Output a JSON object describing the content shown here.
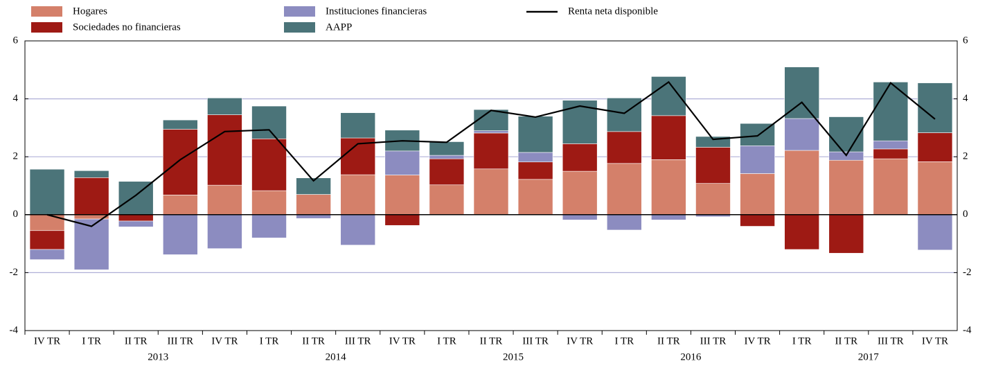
{
  "chart_data": {
    "type": "bar",
    "stacked": true,
    "categories": [
      "IV TR",
      "I TR",
      "II TR",
      "III TR",
      "IV TR",
      "I TR",
      "II TR",
      "III TR",
      "IV TR",
      "I TR",
      "II TR",
      "III TR",
      "IV TR",
      "I TR",
      "II TR",
      "III TR",
      "IV TR",
      "I TR",
      "II TR",
      "III TR",
      "IV TR"
    ],
    "years": [
      null,
      "2013",
      "2013",
      "2013",
      "2013",
      "2014",
      "2014",
      "2014",
      "2014",
      "2015",
      "2015",
      "2015",
      "2015",
      "2016",
      "2016",
      "2016",
      "2016",
      "2017",
      "2017",
      "2017",
      "2017"
    ],
    "series": [
      {
        "name": "Hogares",
        "color": "#d4806a",
        "values": [
          -0.55,
          -0.15,
          0,
          0.68,
          1.02,
          0.83,
          0.7,
          1.38,
          1.37,
          1.03,
          1.58,
          1.22,
          1.5,
          1.77,
          1.9,
          1.08,
          1.42,
          2.22,
          1.88,
          1.93,
          1.83
        ]
      },
      {
        "name": "Sociedades no financieras",
        "color": "#9e1a14",
        "values": [
          -0.65,
          1.28,
          -0.22,
          2.27,
          2.43,
          1.79,
          0,
          1.27,
          -0.37,
          0.9,
          1.24,
          0.6,
          0.95,
          1.1,
          1.52,
          1.25,
          -0.4,
          -1.2,
          -1.33,
          0.34,
          1.0
        ]
      },
      {
        "name": "Instituciones financieras",
        "color": "#8c8cc0",
        "values": [
          -0.35,
          -1.75,
          -0.2,
          -1.38,
          -1.17,
          -0.8,
          -0.13,
          -1.05,
          0.83,
          0.12,
          0.08,
          0.33,
          -0.18,
          -0.53,
          -0.18,
          -0.07,
          0.96,
          1.1,
          0.29,
          0.28,
          -1.22
        ]
      },
      {
        "name": "AAPP",
        "color": "#4b7479",
        "values": [
          1.57,
          0.24,
          1.15,
          0.32,
          0.58,
          1.13,
          0.57,
          0.87,
          0.72,
          0.47,
          0.73,
          1.25,
          1.5,
          1.16,
          1.35,
          0.37,
          0.77,
          1.78,
          1.21,
          2.03,
          1.72
        ]
      },
      {
        "name": "Renta neta disponible",
        "color": "#000000",
        "type": "line",
        "values": [
          0,
          -0.4,
          0.67,
          1.9,
          2.87,
          2.93,
          1.17,
          2.45,
          2.55,
          2.5,
          3.6,
          3.37,
          3.75,
          3.5,
          4.58,
          2.6,
          2.72,
          3.88,
          2.05,
          4.55,
          3.3
        ]
      }
    ],
    "ylim": [
      -4,
      6
    ],
    "yticks": [
      -4,
      -2,
      0,
      2,
      4,
      6
    ],
    "grid": true,
    "grid_color": "#b0b0d8"
  }
}
